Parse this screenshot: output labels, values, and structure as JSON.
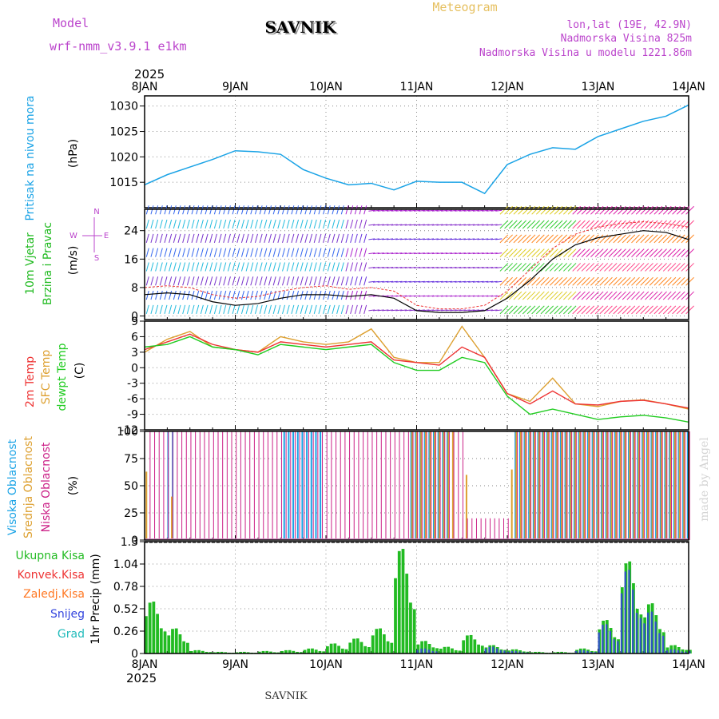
{
  "header": {
    "model_label": "Model",
    "model_name": "wrf-nmm_v3.9.1 e1km",
    "station": "SAVNIK",
    "product": "Meteogram",
    "coords": "lon,lat (19E, 42.9N)",
    "altitude": "Nadmorska Visina 825m",
    "model_altitude": "Nadmorska Visina u modelu 1221.86m",
    "year_top": "2025",
    "year_bottom": "2025",
    "footer_station": "SAVNIK",
    "credit": "made by Angel"
  },
  "colors": {
    "pressure": "#1aa3e6",
    "temp2m": "#ee3333",
    "sfc": "#dda030",
    "dew": "#22cc22",
    "cloud_high": "#1aa3e6",
    "cloud_mid": "#dda030",
    "cloud_low": "#cc2288",
    "precip_total": "#22bb22",
    "precip_conv": "#ee3333",
    "precip_frozen": "#ff7722",
    "precip_snow": "#3344dd",
    "precip_graupel": "#22bbbb",
    "wind_label": "#22bb22",
    "wind_icon": "#bb44cc"
  },
  "chart_data": [
    {
      "type": "line",
      "name": "pressure",
      "ylabel_lines": [
        "Pritisak na nivou mora",
        "(hPa)"
      ],
      "x_ticks": [
        "8JAN",
        "9JAN",
        "10JAN",
        "11JAN",
        "12JAN",
        "13JAN",
        "14JAN"
      ],
      "ylim": [
        1010,
        1032
      ],
      "yticks": [
        1015,
        1020,
        1025,
        1030
      ],
      "grid": true,
      "x": [
        0,
        0.25,
        0.5,
        0.75,
        1,
        1.25,
        1.5,
        1.75,
        2,
        2.25,
        2.5,
        2.75,
        3,
        3.25,
        3.5,
        3.75,
        4,
        4.25,
        4.5,
        4.75,
        5,
        5.25,
        5.5,
        5.75,
        6
      ],
      "values": [
        1014.5,
        1016.5,
        1018.0,
        1019.5,
        1021.2,
        1021.0,
        1020.5,
        1017.5,
        1015.8,
        1014.5,
        1014.8,
        1013.5,
        1015.2,
        1015.0,
        1015.0,
        1012.8,
        1018.5,
        1020.5,
        1021.8,
        1021.5,
        1024.0,
        1025.5,
        1027.0,
        1028.0,
        1030.2
      ]
    },
    {
      "type": "line",
      "name": "wind",
      "ylabel_lines": [
        "10m Vjetar",
        "Brzina i Pravac",
        "(m/s)"
      ],
      "compass": [
        "N",
        "E",
        "S",
        "W"
      ],
      "ylim": [
        -1,
        30
      ],
      "yticks": [
        0,
        8,
        16,
        24
      ],
      "grid": true,
      "barb_rows": [
        0,
        4,
        8,
        12,
        16,
        20,
        24,
        28
      ],
      "x": [
        0,
        0.25,
        0.5,
        0.75,
        1,
        1.25,
        1.5,
        1.75,
        2,
        2.25,
        2.5,
        2.75,
        3,
        3.25,
        3.5,
        3.75,
        4,
        4.25,
        4.5,
        4.75,
        5,
        5.25,
        5.5,
        5.75,
        6
      ],
      "series": [
        {
          "values": [
            6,
            6.5,
            6,
            4,
            3,
            3.5,
            5,
            6,
            6,
            5.5,
            6,
            5,
            1.5,
            1,
            1,
            1.5,
            5,
            10,
            16,
            20,
            22,
            23,
            24,
            23.5,
            21.5
          ]
        },
        {
          "values": [
            8,
            8.5,
            8,
            6,
            5,
            5.5,
            7,
            8,
            8.5,
            7.5,
            8,
            7,
            3,
            2,
            2,
            3,
            7,
            13,
            19,
            23,
            25,
            26,
            26.5,
            26,
            25
          ]
        }
      ]
    },
    {
      "type": "line",
      "name": "temperature",
      "ylabel_lines": [
        "2m Temp",
        "SFC Temp",
        "dewpt Temp",
        "(C)"
      ],
      "ylim": [
        -12,
        9
      ],
      "yticks": [
        9,
        6,
        3,
        0,
        -3,
        -6,
        -9,
        -12
      ],
      "grid": true,
      "x": [
        0,
        0.25,
        0.5,
        0.75,
        1,
        1.25,
        1.5,
        1.75,
        2,
        2.25,
        2.5,
        2.75,
        3,
        3.25,
        3.5,
        3.75,
        4,
        4.25,
        4.5,
        4.75,
        5,
        5.25,
        5.5,
        5.75,
        6
      ],
      "series": [
        {
          "name": "2m Temp",
          "values": [
            3.5,
            5,
            6.5,
            4.5,
            3.5,
            3,
            5,
            4.5,
            4,
            4.5,
            5,
            1.5,
            1,
            0.5,
            4,
            2,
            -5,
            -7,
            -4.5,
            -7,
            -7.2,
            -6.5,
            -6.3,
            -7,
            -7.8
          ]
        },
        {
          "name": "SFC Temp",
          "values": [
            3,
            5.5,
            7,
            4,
            3.5,
            3,
            6,
            5,
            4.5,
            5,
            7.5,
            2,
            1,
            1,
            8,
            2,
            -5,
            -6.5,
            -2,
            -7,
            -7.5,
            -6.5,
            -6.2,
            -7,
            -8
          ]
        },
        {
          "name": "dewpt Temp",
          "values": [
            4,
            4.5,
            6,
            4,
            3.5,
            2.5,
            4.5,
            4,
            3.5,
            4,
            4.5,
            1,
            -0.5,
            -0.5,
            2,
            1,
            -5.5,
            -9,
            -8,
            -9,
            -10,
            -9.5,
            -9.2,
            -9.7,
            -10.5
          ]
        }
      ]
    },
    {
      "type": "bar",
      "name": "clouds",
      "ylabel_lines": [
        "Visoka Oblacnost",
        "Srednja Oblacnost",
        "Niska Oblacnost",
        "(%)"
      ],
      "ylim": [
        0,
        100
      ],
      "yticks": [
        0,
        25,
        50,
        75,
        100
      ],
      "grid": true,
      "series": [
        {
          "name": "Visoka Oblacnost",
          "segments": [
            {
              "from": 0.27,
              "to": 0.33,
              "value": 100
            },
            {
              "from": 1.55,
              "to": 2.0,
              "value": 100
            },
            {
              "from": 2.95,
              "to": 3.35,
              "value": 100
            },
            {
              "from": 4.1,
              "to": 6.0,
              "value": 100
            }
          ]
        },
        {
          "name": "Srednja Oblacnost",
          "segments": [
            {
              "from": 0.02,
              "to": 0.05,
              "value": 63
            },
            {
              "from": 0.3,
              "to": 0.33,
              "value": 40
            },
            {
              "from": 2.95,
              "to": 3.4,
              "value": 100
            },
            {
              "from": 3.55,
              "to": 3.58,
              "value": 60
            },
            {
              "from": 4.05,
              "to": 4.1,
              "value": 65
            },
            {
              "from": 4.1,
              "to": 6.0,
              "value": 100
            }
          ]
        },
        {
          "name": "Niska Oblacnost",
          "segments": [
            {
              "from": 0.05,
              "to": 3.5,
              "value": 100
            },
            {
              "from": 3.5,
              "to": 4.0,
              "value": 20
            },
            {
              "from": 4.1,
              "to": 6.0,
              "value": 100
            }
          ]
        }
      ]
    },
    {
      "type": "bar",
      "name": "precipitation",
      "ylabel_lines": [
        "1hr Precip (mm)"
      ],
      "legend": [
        "Ukupna Kisa",
        "Konvek.Kisa",
        "Zaledj.Kisa",
        "Snijeg",
        "Grad"
      ],
      "ylim": [
        0,
        1.3
      ],
      "yticks": [
        0,
        0.26,
        0.52,
        0.78,
        1.04,
        1.3
      ],
      "grid": true,
      "x": [
        0,
        0.25,
        0.5,
        0.75,
        1,
        1.25,
        1.5,
        1.75,
        2,
        2.25,
        2.5,
        2.75,
        3,
        3.25,
        3.5,
        3.75,
        4,
        4.25,
        4.5,
        4.75,
        5,
        5.25,
        5.5,
        5.75,
        6
      ],
      "series": [
        {
          "name": "Ukupna Kisa",
          "values": [
            0.62,
            0.3,
            0.04,
            0.02,
            0.02,
            0.03,
            0.04,
            0.06,
            0.12,
            0.18,
            0.3,
            1.25,
            0.15,
            0.08,
            0.22,
            0.1,
            0.05,
            0.02,
            0.02,
            0.06,
            0.4,
            1.1,
            0.6,
            0.1,
            0.06
          ]
        },
        {
          "name": "Snijeg",
          "values": [
            0,
            0,
            0,
            0,
            0,
            0,
            0,
            0,
            0,
            0,
            0,
            0,
            0.06,
            0,
            0,
            0.08,
            0.03,
            0,
            0,
            0.04,
            0.35,
            1.0,
            0.5,
            0.05,
            0.04
          ]
        }
      ]
    }
  ]
}
